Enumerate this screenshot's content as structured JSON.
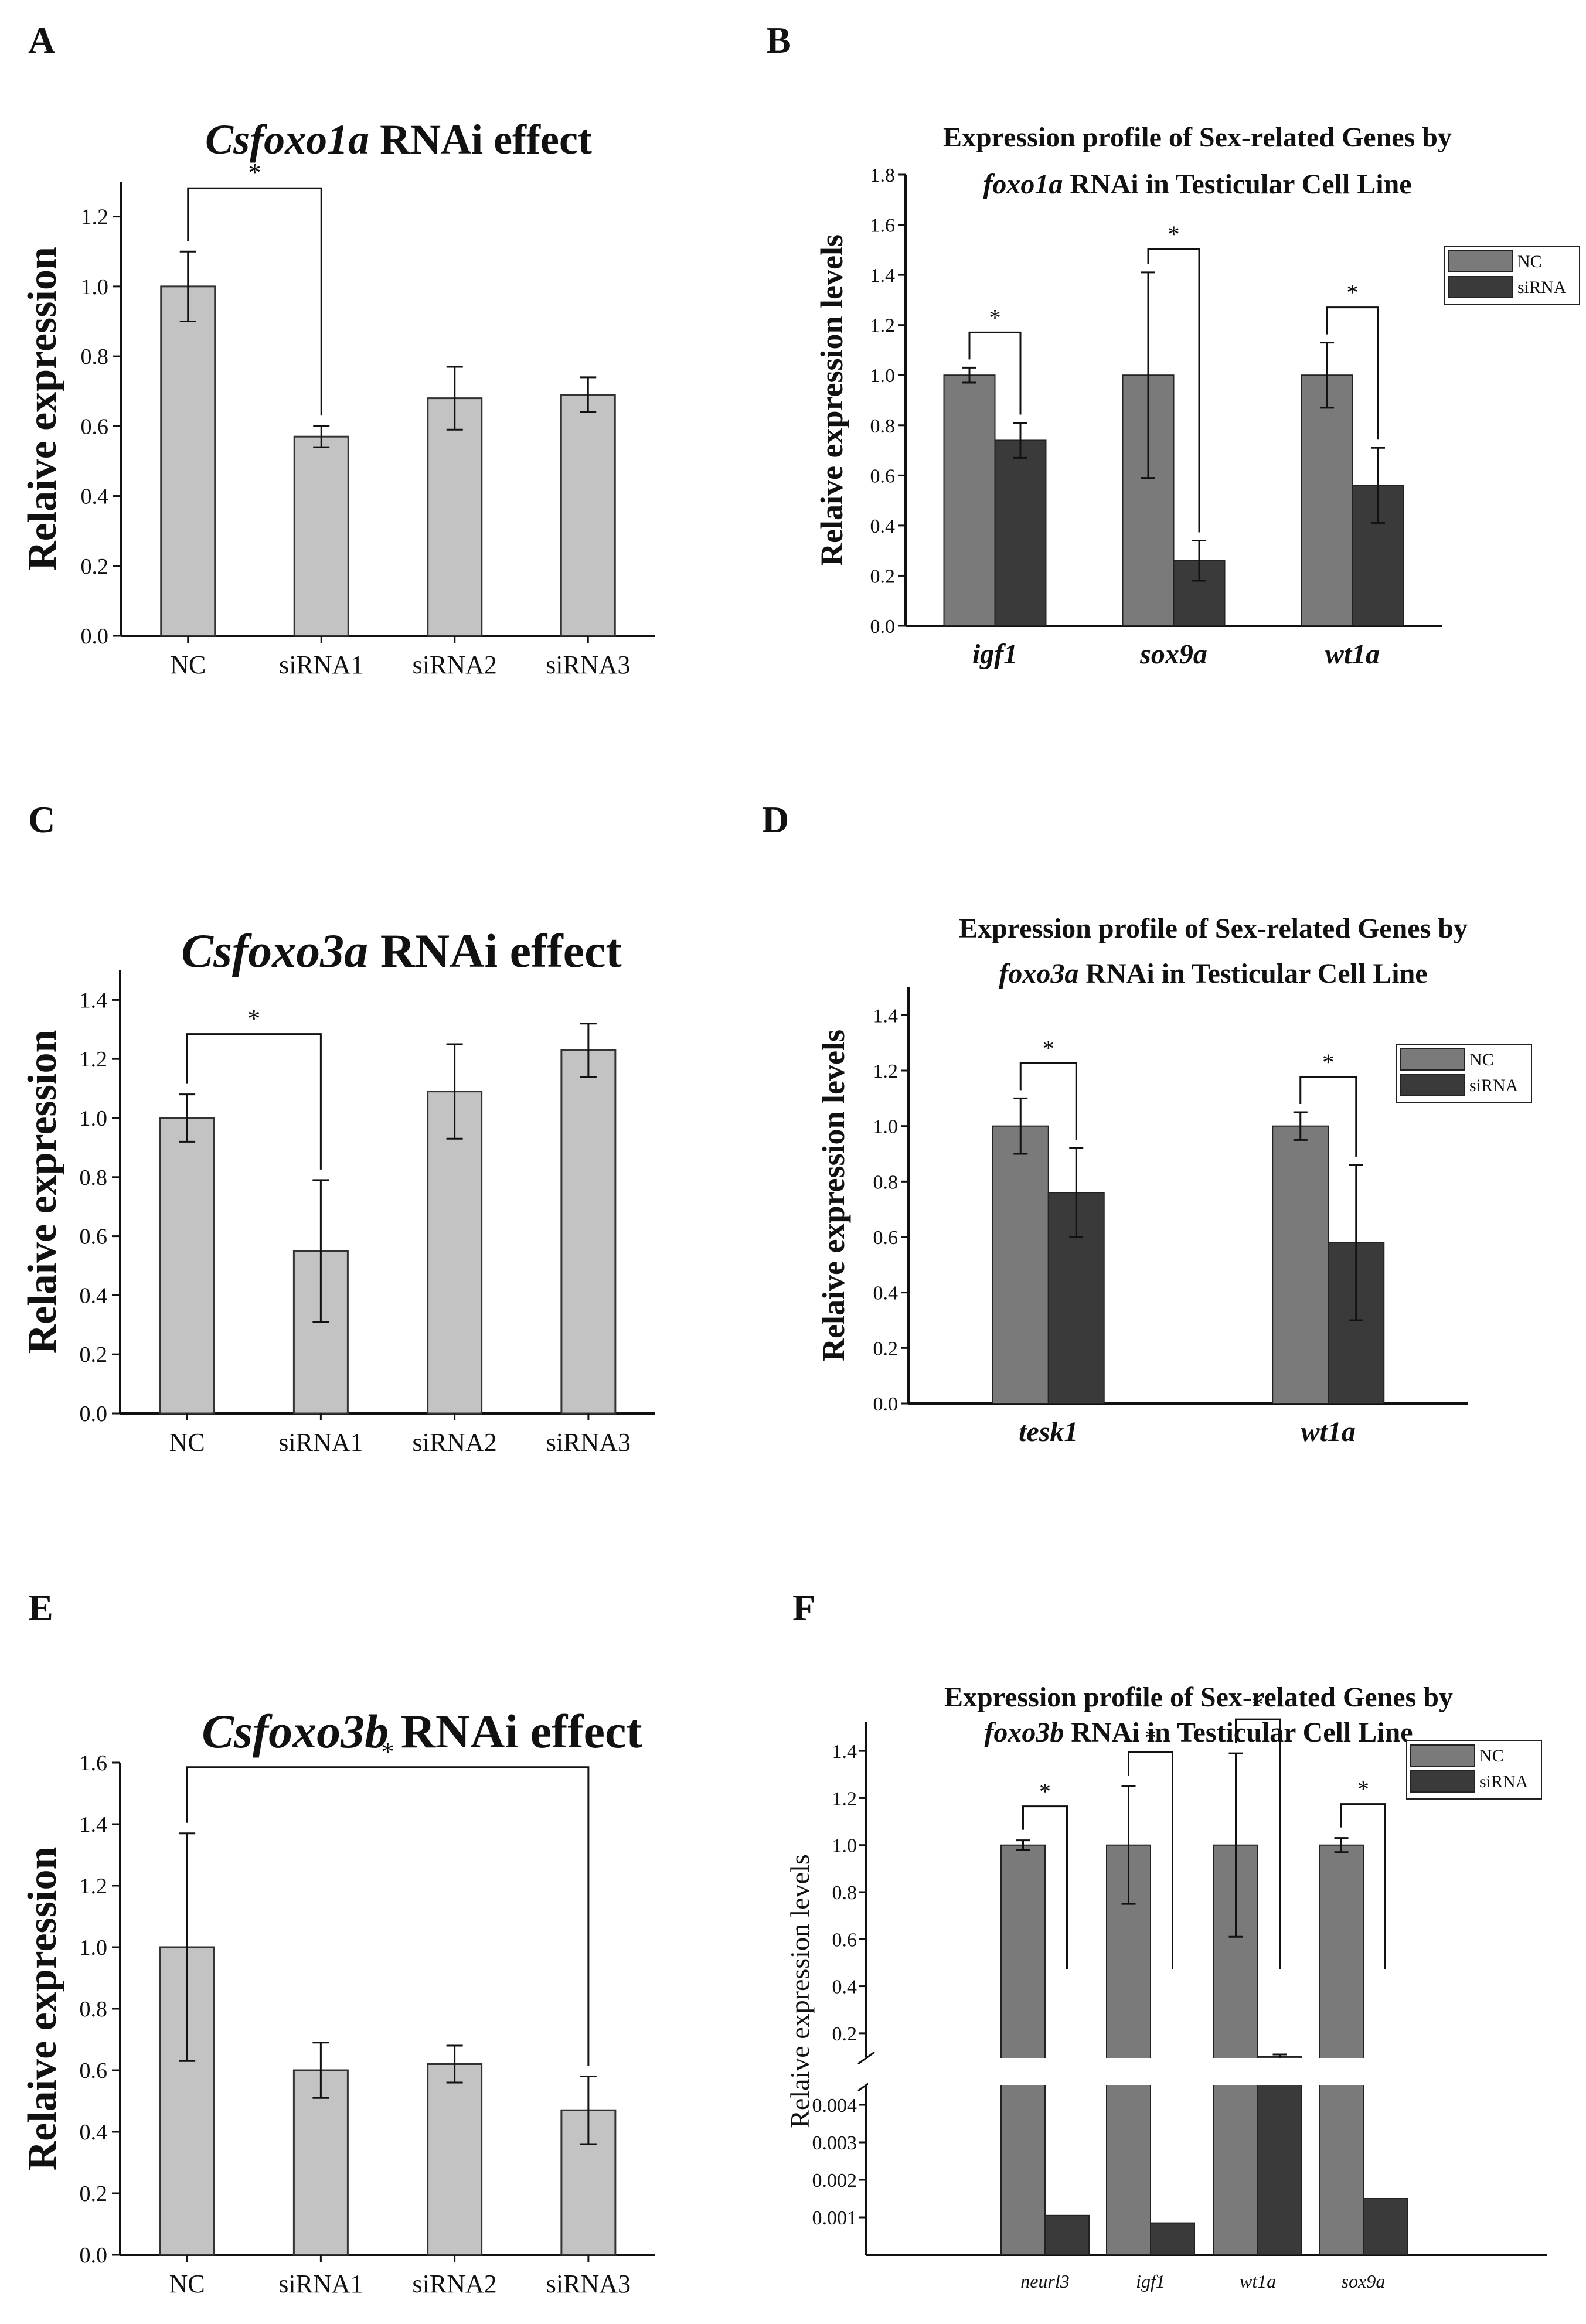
{
  "chart_data": [
    {
      "panel": "A",
      "type": "bar",
      "title_italic": "Csfoxo1a",
      "title_rest": " RNAi effect",
      "ylabel": "Relaive expression",
      "categories": [
        "NC",
        "siRNA1",
        "siRNA2",
        "siRNA3"
      ],
      "values": [
        1.0,
        0.57,
        0.68,
        0.69
      ],
      "errors": [
        0.1,
        0.03,
        0.09,
        0.05
      ],
      "ylim": [
        0,
        1.3
      ],
      "yticks": [
        "0.0",
        "0.2",
        "0.4",
        "0.6",
        "0.8",
        "1.0",
        "1.2"
      ],
      "sig": [
        {
          "from": 0,
          "to": 1,
          "label": "*"
        }
      ]
    },
    {
      "panel": "B",
      "type": "bar",
      "title_line1": "Expression profile of Sex-related Genes by",
      "title_line2_italic": "foxo1a",
      "title_line2_rest": " RNAi in Testicular Cell Line",
      "ylabel": "Relaive expression levels",
      "categories": [
        "igf1",
        "sox9a",
        "wt1a"
      ],
      "series": [
        {
          "name": "NC",
          "values": [
            1.0,
            1.0,
            1.0
          ],
          "errors": [
            0.03,
            0.41,
            0.13
          ],
          "color": "#7a7a7a"
        },
        {
          "name": "siRNA",
          "values": [
            0.74,
            0.26,
            0.56
          ],
          "errors": [
            0.07,
            0.08,
            0.15
          ],
          "color": "#3a3a3a"
        }
      ],
      "ylim": [
        0,
        1.8
      ],
      "yticks": [
        "0.0",
        "0.2",
        "0.4",
        "0.6",
        "0.8",
        "1.0",
        "1.2",
        "1.4",
        "1.6",
        "1.8"
      ],
      "legend": "top-right",
      "sig_label": "*"
    },
    {
      "panel": "C",
      "type": "bar",
      "title_italic": "Csfoxo3a",
      "title_rest": " RNAi effect",
      "ylabel": "Relaive expression",
      "categories": [
        "NC",
        "siRNA1",
        "siRNA2",
        "siRNA3"
      ],
      "values": [
        1.0,
        0.55,
        1.09,
        1.23
      ],
      "errors": [
        0.08,
        0.24,
        0.16,
        0.09
      ],
      "ylim": [
        0,
        1.5
      ],
      "yticks": [
        "0.0",
        "0.2",
        "0.4",
        "0.6",
        "0.8",
        "1.0",
        "1.2",
        "1.4"
      ],
      "sig": [
        {
          "from": 0,
          "to": 1,
          "label": "*"
        }
      ]
    },
    {
      "panel": "D",
      "type": "bar",
      "title_line1": "Expression profile of Sex-related Genes by",
      "title_line2_italic": "foxo3a",
      "title_line2_rest": " RNAi in Testicular Cell Line",
      "ylabel": "Relaive expression levels",
      "categories": [
        "tesk1",
        "wt1a"
      ],
      "series": [
        {
          "name": "NC",
          "values": [
            1.0,
            1.0
          ],
          "errors": [
            0.1,
            0.05
          ],
          "color": "#7a7a7a"
        },
        {
          "name": "siRNA",
          "values": [
            0.76,
            0.58
          ],
          "errors": [
            0.16,
            0.28
          ],
          "color": "#3a3a3a"
        }
      ],
      "ylim": [
        0,
        1.5
      ],
      "yticks": [
        "0.0",
        "0.2",
        "0.4",
        "0.6",
        "0.8",
        "1.0",
        "1.2",
        "1.4"
      ],
      "legend": "top-right",
      "sig_label": "*"
    },
    {
      "panel": "E",
      "type": "bar",
      "title_italic": "Csfoxo3b",
      "title_rest": " RNAi effect",
      "ylabel": "Relaive expression",
      "categories": [
        "NC",
        "siRNA1",
        "siRNA2",
        "siRNA3"
      ],
      "values": [
        1.0,
        0.6,
        0.62,
        0.47
      ],
      "errors": [
        0.37,
        0.09,
        0.06,
        0.11
      ],
      "ylim": [
        0,
        1.6
      ],
      "yticks": [
        "0.0",
        "0.2",
        "0.4",
        "0.6",
        "0.8",
        "1.0",
        "1.2",
        "1.4",
        "1.6"
      ],
      "sig": [
        {
          "from": 0,
          "to": 3,
          "label": "*"
        }
      ]
    },
    {
      "panel": "F",
      "type": "bar",
      "broken_axis": true,
      "title_line1": "Expression profile of Sex-related Genes by",
      "title_line2_italic": "foxo3b",
      "title_line2_rest": " RNAi in Testicular Cell Line",
      "ylabel": "Relaive expression levels",
      "categories": [
        "neurl3",
        "igf1",
        "wt1a",
        "sox9a"
      ],
      "series": [
        {
          "name": "NC",
          "values": [
            1.0,
            1.0,
            1.0,
            1.0
          ],
          "errors": [
            0.02,
            0.25,
            0.39,
            0.03
          ],
          "color": "#7a7a7a"
        },
        {
          "name": "siRNA",
          "values": [
            0.00105,
            0.00085,
            0.1,
            0.0015
          ],
          "errors": [
            0,
            0,
            0.01,
            0
          ],
          "color": "#3a3a3a"
        }
      ],
      "lower_range": [
        0,
        0.0045
      ],
      "lower_ticks": [
        "0.001",
        "0.002",
        "0.003",
        "0.004"
      ],
      "upper_range": [
        0.1,
        1.5
      ],
      "upper_ticks": [
        "0.2",
        "0.4",
        "0.6",
        "0.8",
        "1.0",
        "1.2",
        "1.4"
      ],
      "legend": "top-right",
      "sig_label": "*"
    }
  ]
}
